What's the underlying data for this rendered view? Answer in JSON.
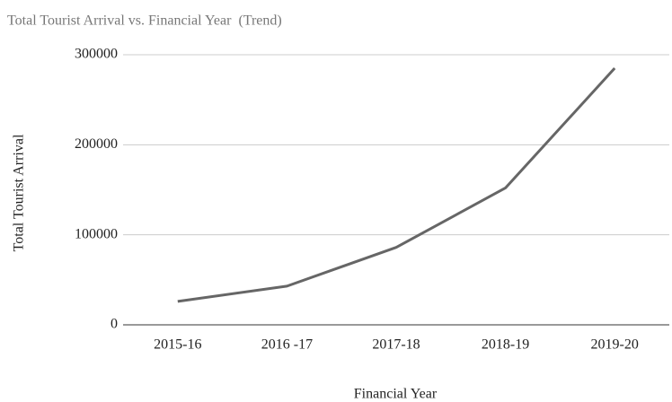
{
  "chart_data": {
    "type": "line",
    "title": "Total Tourist Arrival vs. Financial Year  (Trend)",
    "x_label": "Financial Year",
    "y_label": "Total Tourist Arrival",
    "categories": [
      "2015-16",
      "2016 -17",
      "2017-18",
      "2018-19",
      "2019-20"
    ],
    "series": [
      {
        "name": "Total Tourist Arrival",
        "color": "#666666",
        "values": [
          26000,
          43000,
          86000,
          152000,
          285000
        ]
      }
    ],
    "ylim": [
      0,
      300000
    ],
    "yticks": [
      0,
      100000,
      200000,
      300000
    ],
    "grid": true
  }
}
